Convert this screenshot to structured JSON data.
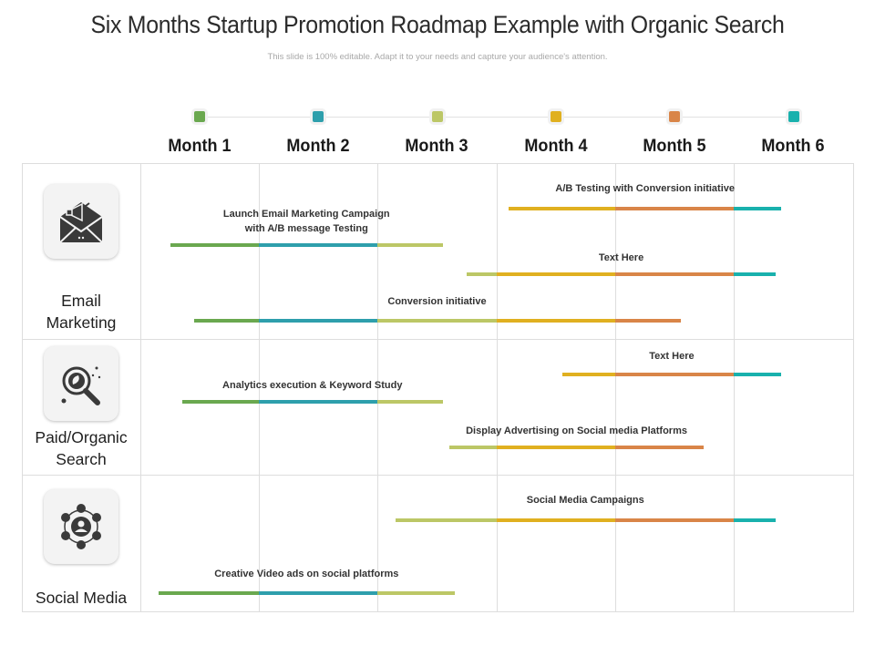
{
  "title": "Six Months Startup Promotion Roadmap Example with Organic Search",
  "subtitle": "This slide is 100% editable. Adapt it to your needs and capture your audience's attention.",
  "colors": {
    "green": "#6aa84f",
    "teal": "#2e9fac",
    "lime": "#bcc766",
    "gold": "#e0b020",
    "orange": "#d98548",
    "cyan": "#19b1ad"
  },
  "months": [
    {
      "label": "Month 1",
      "color": "#6aa84f"
    },
    {
      "label": "Month 2",
      "color": "#2e9fac"
    },
    {
      "label": "Month 3",
      "color": "#bcc766"
    },
    {
      "label": "Month 4",
      "color": "#e0b020"
    },
    {
      "label": "Month 5",
      "color": "#d98548"
    },
    {
      "label": "Month 6",
      "color": "#19b1ad"
    }
  ],
  "categories": [
    {
      "label": "Email\nMarketing",
      "icon": "megaphone-envelope-icon",
      "tasks": [
        {
          "label": "A/B Testing with Conversion initiative",
          "start_month": 4.1,
          "end_month": 6.4
        },
        {
          "label": "Launch Email Marketing Campaign\nwith  A/B message Testing",
          "start_month": 1.25,
          "end_month": 3.55
        },
        {
          "label": "Text Here",
          "start_month": 3.75,
          "end_month": 6.35
        },
        {
          "label": "Conversion initiative",
          "start_month": 1.45,
          "end_month": 5.55
        }
      ]
    },
    {
      "label": "Paid/Organic\nSearch",
      "icon": "magnifier-leaf-icon",
      "tasks": [
        {
          "label": "Text Here",
          "start_month": 4.55,
          "end_month": 6.4
        },
        {
          "label": "Analytics execution & Keyword Study",
          "start_month": 1.35,
          "end_month": 3.55
        },
        {
          "label": "Display Advertising on Social media Platforms",
          "start_month": 3.6,
          "end_month": 5.75
        }
      ]
    },
    {
      "label": "Social Media",
      "icon": "social-network-icon",
      "tasks": [
        {
          "label": "Social Media Campaigns",
          "start_month": 3.15,
          "end_month": 6.35
        },
        {
          "label": "Creative Video ads on social platforms",
          "start_month": 1.15,
          "end_month": 3.65
        }
      ]
    }
  ]
}
